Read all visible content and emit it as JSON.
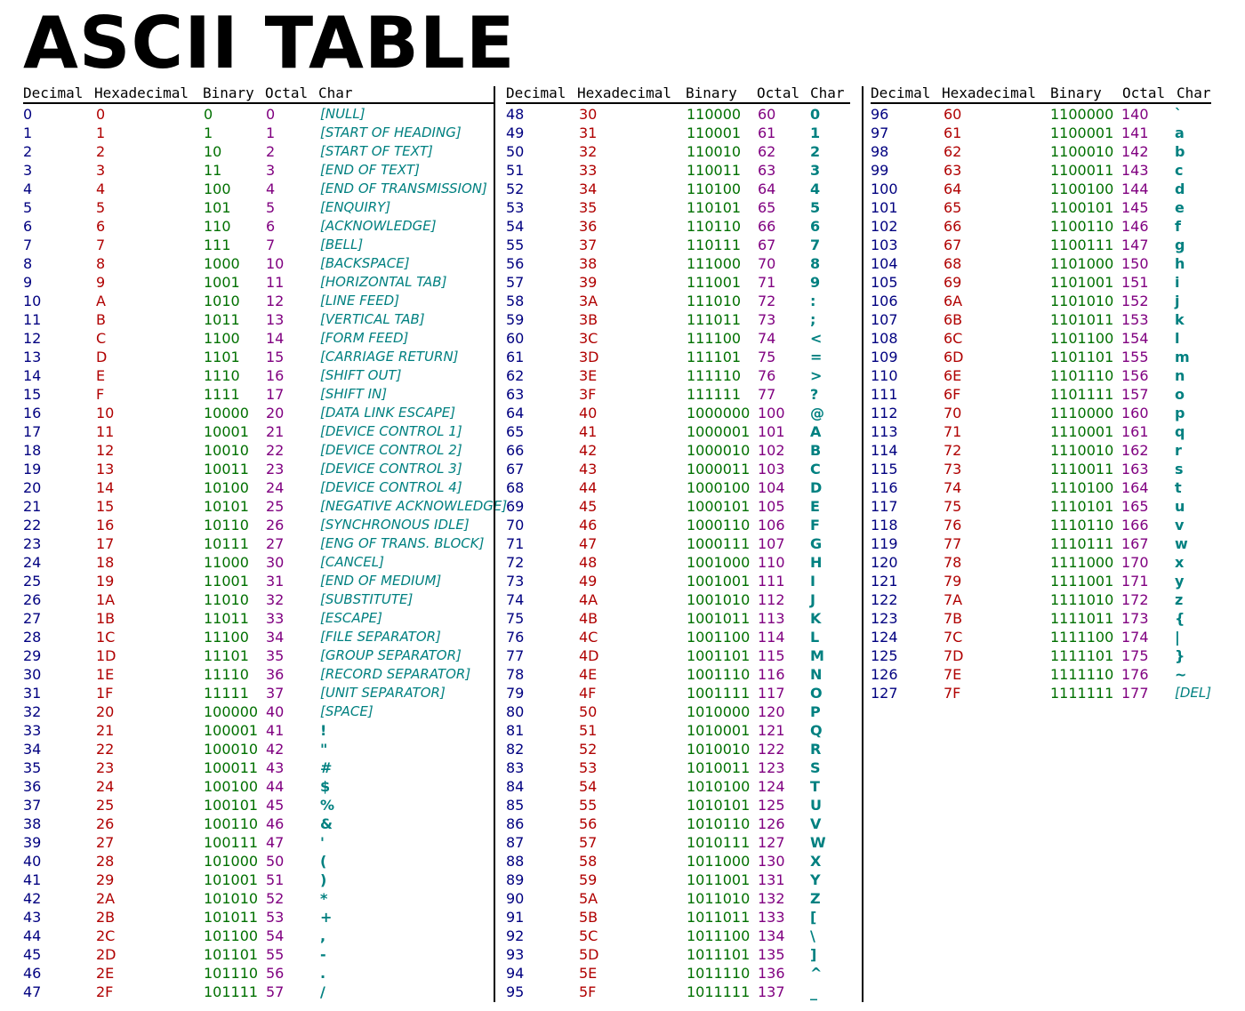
{
  "title": "ASCII TABLE",
  "headers": [
    "Decimal",
    "Hexadecimal",
    "Binary",
    "Octal",
    "Char"
  ],
  "colors": {
    "decimal": "#000080",
    "hexadecimal": "#b00000",
    "binary": "#007000",
    "octal": "#800080",
    "char": "#008080",
    "rule": "#000000"
  },
  "sections": [
    {
      "rows": [
        [
          "0",
          "0",
          "0",
          "0",
          "[NULL]"
        ],
        [
          "1",
          "1",
          "1",
          "1",
          "[START OF HEADING]"
        ],
        [
          "2",
          "2",
          "10",
          "2",
          "[START OF TEXT]"
        ],
        [
          "3",
          "3",
          "11",
          "3",
          "[END OF TEXT]"
        ],
        [
          "4",
          "4",
          "100",
          "4",
          "[END OF TRANSMISSION]"
        ],
        [
          "5",
          "5",
          "101",
          "5",
          "[ENQUIRY]"
        ],
        [
          "6",
          "6",
          "110",
          "6",
          "[ACKNOWLEDGE]"
        ],
        [
          "7",
          "7",
          "111",
          "7",
          "[BELL]"
        ],
        [
          "8",
          "8",
          "1000",
          "10",
          "[BACKSPACE]"
        ],
        [
          "9",
          "9",
          "1001",
          "11",
          "[HORIZONTAL TAB]"
        ],
        [
          "10",
          "A",
          "1010",
          "12",
          "[LINE FEED]"
        ],
        [
          "11",
          "B",
          "1011",
          "13",
          "[VERTICAL TAB]"
        ],
        [
          "12",
          "C",
          "1100",
          "14",
          "[FORM FEED]"
        ],
        [
          "13",
          "D",
          "1101",
          "15",
          "[CARRIAGE RETURN]"
        ],
        [
          "14",
          "E",
          "1110",
          "16",
          "[SHIFT OUT]"
        ],
        [
          "15",
          "F",
          "1111",
          "17",
          "[SHIFT IN]"
        ],
        [
          "16",
          "10",
          "10000",
          "20",
          "[DATA LINK ESCAPE]"
        ],
        [
          "17",
          "11",
          "10001",
          "21",
          "[DEVICE CONTROL 1]"
        ],
        [
          "18",
          "12",
          "10010",
          "22",
          "[DEVICE CONTROL 2]"
        ],
        [
          "19",
          "13",
          "10011",
          "23",
          "[DEVICE CONTROL 3]"
        ],
        [
          "20",
          "14",
          "10100",
          "24",
          "[DEVICE CONTROL 4]"
        ],
        [
          "21",
          "15",
          "10101",
          "25",
          "[NEGATIVE ACKNOWLEDGE]"
        ],
        [
          "22",
          "16",
          "10110",
          "26",
          "[SYNCHRONOUS IDLE]"
        ],
        [
          "23",
          "17",
          "10111",
          "27",
          "[ENG OF TRANS. BLOCK]"
        ],
        [
          "24",
          "18",
          "11000",
          "30",
          "[CANCEL]"
        ],
        [
          "25",
          "19",
          "11001",
          "31",
          "[END OF MEDIUM]"
        ],
        [
          "26",
          "1A",
          "11010",
          "32",
          "[SUBSTITUTE]"
        ],
        [
          "27",
          "1B",
          "11011",
          "33",
          "[ESCAPE]"
        ],
        [
          "28",
          "1C",
          "11100",
          "34",
          "[FILE SEPARATOR]"
        ],
        [
          "29",
          "1D",
          "11101",
          "35",
          "[GROUP SEPARATOR]"
        ],
        [
          "30",
          "1E",
          "11110",
          "36",
          "[RECORD SEPARATOR]"
        ],
        [
          "31",
          "1F",
          "11111",
          "37",
          "[UNIT SEPARATOR]"
        ],
        [
          "32",
          "20",
          "100000",
          "40",
          "[SPACE]"
        ],
        [
          "33",
          "21",
          "100001",
          "41",
          "!"
        ],
        [
          "34",
          "22",
          "100010",
          "42",
          "\""
        ],
        [
          "35",
          "23",
          "100011",
          "43",
          "#"
        ],
        [
          "36",
          "24",
          "100100",
          "44",
          "$"
        ],
        [
          "37",
          "25",
          "100101",
          "45",
          "%"
        ],
        [
          "38",
          "26",
          "100110",
          "46",
          "&"
        ],
        [
          "39",
          "27",
          "100111",
          "47",
          "'"
        ],
        [
          "40",
          "28",
          "101000",
          "50",
          "("
        ],
        [
          "41",
          "29",
          "101001",
          "51",
          ")"
        ],
        [
          "42",
          "2A",
          "101010",
          "52",
          "*"
        ],
        [
          "43",
          "2B",
          "101011",
          "53",
          "+"
        ],
        [
          "44",
          "2C",
          "101100",
          "54",
          ","
        ],
        [
          "45",
          "2D",
          "101101",
          "55",
          "-"
        ],
        [
          "46",
          "2E",
          "101110",
          "56",
          "."
        ],
        [
          "47",
          "2F",
          "101111",
          "57",
          "/"
        ]
      ]
    },
    {
      "rows": [
        [
          "48",
          "30",
          "110000",
          "60",
          "0"
        ],
        [
          "49",
          "31",
          "110001",
          "61",
          "1"
        ],
        [
          "50",
          "32",
          "110010",
          "62",
          "2"
        ],
        [
          "51",
          "33",
          "110011",
          "63",
          "3"
        ],
        [
          "52",
          "34",
          "110100",
          "64",
          "4"
        ],
        [
          "53",
          "35",
          "110101",
          "65",
          "5"
        ],
        [
          "54",
          "36",
          "110110",
          "66",
          "6"
        ],
        [
          "55",
          "37",
          "110111",
          "67",
          "7"
        ],
        [
          "56",
          "38",
          "111000",
          "70",
          "8"
        ],
        [
          "57",
          "39",
          "111001",
          "71",
          "9"
        ],
        [
          "58",
          "3A",
          "111010",
          "72",
          ":"
        ],
        [
          "59",
          "3B",
          "111011",
          "73",
          ";"
        ],
        [
          "60",
          "3C",
          "111100",
          "74",
          "<"
        ],
        [
          "61",
          "3D",
          "111101",
          "75",
          "="
        ],
        [
          "62",
          "3E",
          "111110",
          "76",
          ">"
        ],
        [
          "63",
          "3F",
          "111111",
          "77",
          "?"
        ],
        [
          "64",
          "40",
          "1000000",
          "100",
          "@"
        ],
        [
          "65",
          "41",
          "1000001",
          "101",
          "A"
        ],
        [
          "66",
          "42",
          "1000010",
          "102",
          "B"
        ],
        [
          "67",
          "43",
          "1000011",
          "103",
          "C"
        ],
        [
          "68",
          "44",
          "1000100",
          "104",
          "D"
        ],
        [
          "69",
          "45",
          "1000101",
          "105",
          "E"
        ],
        [
          "70",
          "46",
          "1000110",
          "106",
          "F"
        ],
        [
          "71",
          "47",
          "1000111",
          "107",
          "G"
        ],
        [
          "72",
          "48",
          "1001000",
          "110",
          "H"
        ],
        [
          "73",
          "49",
          "1001001",
          "111",
          "I"
        ],
        [
          "74",
          "4A",
          "1001010",
          "112",
          "J"
        ],
        [
          "75",
          "4B",
          "1001011",
          "113",
          "K"
        ],
        [
          "76",
          "4C",
          "1001100",
          "114",
          "L"
        ],
        [
          "77",
          "4D",
          "1001101",
          "115",
          "M"
        ],
        [
          "78",
          "4E",
          "1001110",
          "116",
          "N"
        ],
        [
          "79",
          "4F",
          "1001111",
          "117",
          "O"
        ],
        [
          "80",
          "50",
          "1010000",
          "120",
          "P"
        ],
        [
          "81",
          "51",
          "1010001",
          "121",
          "Q"
        ],
        [
          "82",
          "52",
          "1010010",
          "122",
          "R"
        ],
        [
          "83",
          "53",
          "1010011",
          "123",
          "S"
        ],
        [
          "84",
          "54",
          "1010100",
          "124",
          "T"
        ],
        [
          "85",
          "55",
          "1010101",
          "125",
          "U"
        ],
        [
          "86",
          "56",
          "1010110",
          "126",
          "V"
        ],
        [
          "87",
          "57",
          "1010111",
          "127",
          "W"
        ],
        [
          "88",
          "58",
          "1011000",
          "130",
          "X"
        ],
        [
          "89",
          "59",
          "1011001",
          "131",
          "Y"
        ],
        [
          "90",
          "5A",
          "1011010",
          "132",
          "Z"
        ],
        [
          "91",
          "5B",
          "1011011",
          "133",
          "["
        ],
        [
          "92",
          "5C",
          "1011100",
          "134",
          "\\"
        ],
        [
          "93",
          "5D",
          "1011101",
          "135",
          "]"
        ],
        [
          "94",
          "5E",
          "1011110",
          "136",
          "^"
        ],
        [
          "95",
          "5F",
          "1011111",
          "137",
          "_"
        ]
      ]
    },
    {
      "rows": [
        [
          "96",
          "60",
          "1100000",
          "140",
          "`"
        ],
        [
          "97",
          "61",
          "1100001",
          "141",
          "a"
        ],
        [
          "98",
          "62",
          "1100010",
          "142",
          "b"
        ],
        [
          "99",
          "63",
          "1100011",
          "143",
          "c"
        ],
        [
          "100",
          "64",
          "1100100",
          "144",
          "d"
        ],
        [
          "101",
          "65",
          "1100101",
          "145",
          "e"
        ],
        [
          "102",
          "66",
          "1100110",
          "146",
          "f"
        ],
        [
          "103",
          "67",
          "1100111",
          "147",
          "g"
        ],
        [
          "104",
          "68",
          "1101000",
          "150",
          "h"
        ],
        [
          "105",
          "69",
          "1101001",
          "151",
          "i"
        ],
        [
          "106",
          "6A",
          "1101010",
          "152",
          "j"
        ],
        [
          "107",
          "6B",
          "1101011",
          "153",
          "k"
        ],
        [
          "108",
          "6C",
          "1101100",
          "154",
          "l"
        ],
        [
          "109",
          "6D",
          "1101101",
          "155",
          "m"
        ],
        [
          "110",
          "6E",
          "1101110",
          "156",
          "n"
        ],
        [
          "111",
          "6F",
          "1101111",
          "157",
          "o"
        ],
        [
          "112",
          "70",
          "1110000",
          "160",
          "p"
        ],
        [
          "113",
          "71",
          "1110001",
          "161",
          "q"
        ],
        [
          "114",
          "72",
          "1110010",
          "162",
          "r"
        ],
        [
          "115",
          "73",
          "1110011",
          "163",
          "s"
        ],
        [
          "116",
          "74",
          "1110100",
          "164",
          "t"
        ],
        [
          "117",
          "75",
          "1110101",
          "165",
          "u"
        ],
        [
          "118",
          "76",
          "1110110",
          "166",
          "v"
        ],
        [
          "119",
          "77",
          "1110111",
          "167",
          "w"
        ],
        [
          "120",
          "78",
          "1111000",
          "170",
          "x"
        ],
        [
          "121",
          "79",
          "1111001",
          "171",
          "y"
        ],
        [
          "122",
          "7A",
          "1111010",
          "172",
          "z"
        ],
        [
          "123",
          "7B",
          "1111011",
          "173",
          "{"
        ],
        [
          "124",
          "7C",
          "1111100",
          "174",
          "|"
        ],
        [
          "125",
          "7D",
          "1111101",
          "175",
          "}"
        ],
        [
          "126",
          "7E",
          "1111110",
          "176",
          "~"
        ],
        [
          "127",
          "7F",
          "1111111",
          "177",
          "[DEL]"
        ]
      ]
    }
  ]
}
